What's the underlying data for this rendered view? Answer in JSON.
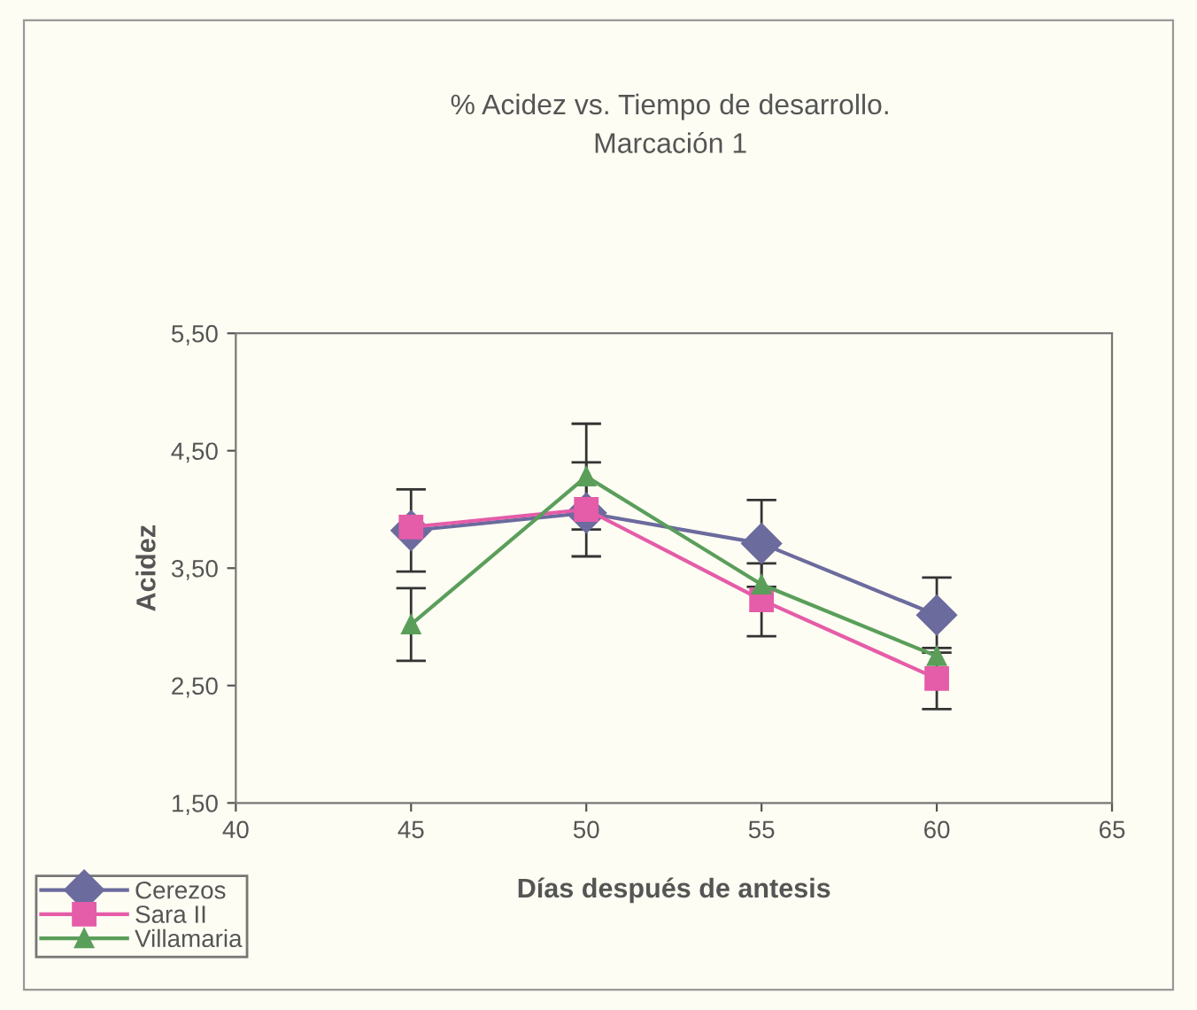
{
  "chart_data": {
    "type": "line",
    "title": "% Acidez vs. Tiempo de desarrollo.\nMarcación 1",
    "xlabel": "Días después de antesis",
    "ylabel": "Acidez",
    "x": [
      45,
      50,
      55,
      60
    ],
    "series": [
      {
        "name": "Cerezos",
        "color": "#6b6b9e",
        "marker": "diamond",
        "values": [
          3.82,
          3.97,
          3.71,
          3.1
        ],
        "errors": [
          0.35,
          null,
          0.37,
          0.32
        ]
      },
      {
        "name": "Sara II",
        "color": "#e55ca8",
        "marker": "square",
        "values": [
          3.85,
          4.0,
          3.23,
          2.56
        ],
        "errors": [
          null,
          0.4,
          0.31,
          0.26
        ]
      },
      {
        "name": "Villamaria",
        "color": "#5a9e5a",
        "marker": "triangle",
        "values": [
          3.02,
          4.28,
          3.36,
          2.75
        ],
        "errors": [
          0.31,
          0.45,
          null,
          null
        ]
      }
    ],
    "xlim": [
      40,
      65
    ],
    "xticks": [
      40,
      45,
      50,
      55,
      60,
      65
    ],
    "ylim": [
      1.5,
      5.5
    ],
    "yticks": [
      {
        "value": 1.5,
        "label": "1,50"
      },
      {
        "value": 2.5,
        "label": "2,50"
      },
      {
        "value": 3.5,
        "label": "3,50"
      },
      {
        "value": 4.5,
        "label": "4,50"
      },
      {
        "value": 5.5,
        "label": "5,50"
      }
    ],
    "grid": false,
    "legend": "bottom left"
  }
}
